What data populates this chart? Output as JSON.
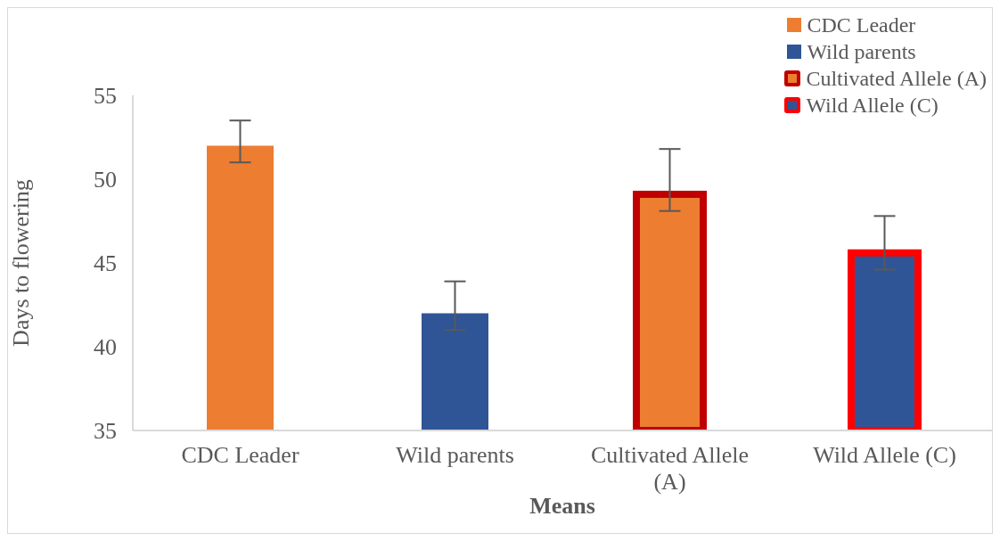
{
  "chart_data": {
    "type": "bar",
    "xlabel": "Means",
    "ylabel": "Days to flowering",
    "categories": [
      "CDC Leader",
      "Wild parents",
      "Cultivated Allele (A)",
      "Wild Allele (C)"
    ],
    "series": [
      {
        "name": "CDC Leader",
        "color": "#ed7d31",
        "values": [
          52,
          null,
          null,
          null
        ],
        "errors": [
          [
            51,
            53.5
          ],
          null,
          null,
          null
        ]
      },
      {
        "name": "Wild parents",
        "color": "#2f5597",
        "values": [
          null,
          42,
          null,
          null
        ],
        "errors": [
          null,
          [
            41,
            43.9
          ],
          null,
          null
        ]
      },
      {
        "name": "Cultivated Allele (A)",
        "color": "#ed7d31",
        "values": [
          null,
          null,
          49.1,
          null
        ],
        "errors": [
          null,
          null,
          [
            48.1,
            51.8
          ],
          null
        ]
      },
      {
        "name": "Wild Allele (C)",
        "color": "#2f5597",
        "values": [
          null,
          null,
          null,
          45.6
        ],
        "errors": [
          null,
          null,
          null,
          [
            44.6,
            47.8
          ]
        ]
      }
    ],
    "ylim": [
      35,
      55
    ],
    "yticks": [
      35,
      40,
      45,
      50,
      55
    ],
    "legend": "top right"
  }
}
